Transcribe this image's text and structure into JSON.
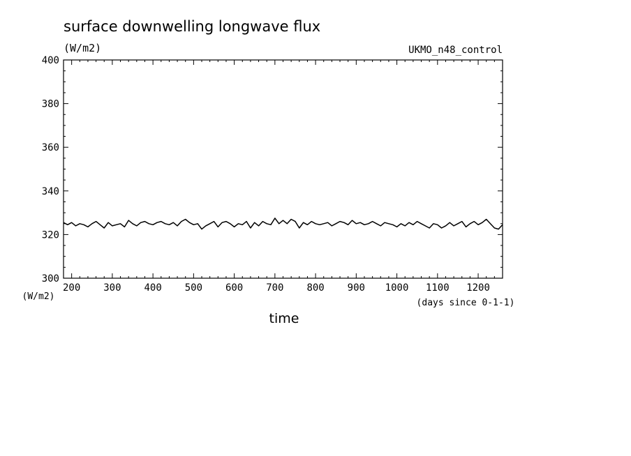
{
  "chart_data": {
    "type": "line",
    "title": "surface downwelling longwave flux",
    "units_label": "(W/m2)",
    "model_label": "UKMO_n48_control",
    "y_axis_unit_label": "(W/m2)",
    "x_axis_unit_label": "(days since 0-1-1)",
    "xlabel": "time",
    "xlim": [
      180,
      1260
    ],
    "ylim": [
      300,
      400
    ],
    "x_ticks": [
      200,
      300,
      400,
      500,
      600,
      700,
      800,
      900,
      1000,
      1100,
      1200
    ],
    "y_ticks": [
      300,
      320,
      340,
      360,
      380,
      400
    ],
    "grid": false,
    "series": [
      {
        "color": "#000000",
        "x": [
          180,
          190,
          200,
          210,
          220,
          230,
          240,
          250,
          260,
          270,
          280,
          290,
          300,
          310,
          320,
          330,
          340,
          350,
          360,
          370,
          380,
          390,
          400,
          410,
          420,
          430,
          440,
          450,
          460,
          470,
          480,
          490,
          500,
          510,
          520,
          530,
          540,
          550,
          560,
          570,
          580,
          590,
          600,
          610,
          620,
          630,
          640,
          650,
          660,
          670,
          680,
          690,
          700,
          710,
          720,
          730,
          740,
          750,
          760,
          770,
          780,
          790,
          800,
          810,
          820,
          830,
          840,
          850,
          860,
          870,
          880,
          890,
          900,
          910,
          920,
          930,
          940,
          950,
          960,
          970,
          980,
          990,
          1000,
          1010,
          1020,
          1030,
          1040,
          1050,
          1060,
          1070,
          1080,
          1090,
          1100,
          1110,
          1120,
          1130,
          1140,
          1150,
          1160,
          1170,
          1180,
          1190,
          1200,
          1210,
          1220,
          1230,
          1240,
          1250,
          1260
        ],
        "y": [
          325.5,
          324.5,
          325.5,
          324.0,
          325.0,
          324.5,
          323.5,
          325.0,
          326.0,
          324.5,
          323.0,
          325.5,
          324.0,
          324.5,
          325.0,
          323.5,
          326.5,
          325.0,
          324.0,
          325.5,
          326.0,
          325.0,
          324.5,
          325.5,
          326.0,
          325.0,
          324.5,
          325.5,
          324.0,
          326.0,
          327.0,
          325.5,
          324.5,
          325.0,
          322.5,
          324.0,
          325.0,
          326.0,
          323.5,
          325.5,
          326.0,
          325.0,
          323.5,
          325.0,
          324.5,
          326.0,
          323.0,
          325.5,
          324.0,
          326.0,
          325.0,
          324.5,
          327.5,
          325.0,
          326.5,
          325.0,
          327.0,
          326.0,
          323.0,
          325.5,
          324.5,
          326.0,
          325.0,
          324.5,
          325.0,
          325.5,
          324.0,
          325.0,
          326.0,
          325.5,
          324.5,
          326.5,
          325.0,
          325.5,
          324.5,
          325.0,
          326.0,
          325.0,
          324.0,
          325.5,
          325.0,
          324.5,
          323.5,
          325.0,
          324.0,
          325.5,
          324.5,
          326.0,
          325.0,
          324.0,
          323.0,
          325.0,
          324.5,
          323.0,
          324.0,
          325.5,
          324.0,
          325.0,
          326.0,
          323.5,
          325.0,
          326.0,
          324.5,
          325.5,
          327.0,
          325.0,
          323.0,
          322.5,
          324.5
        ]
      }
    ]
  }
}
